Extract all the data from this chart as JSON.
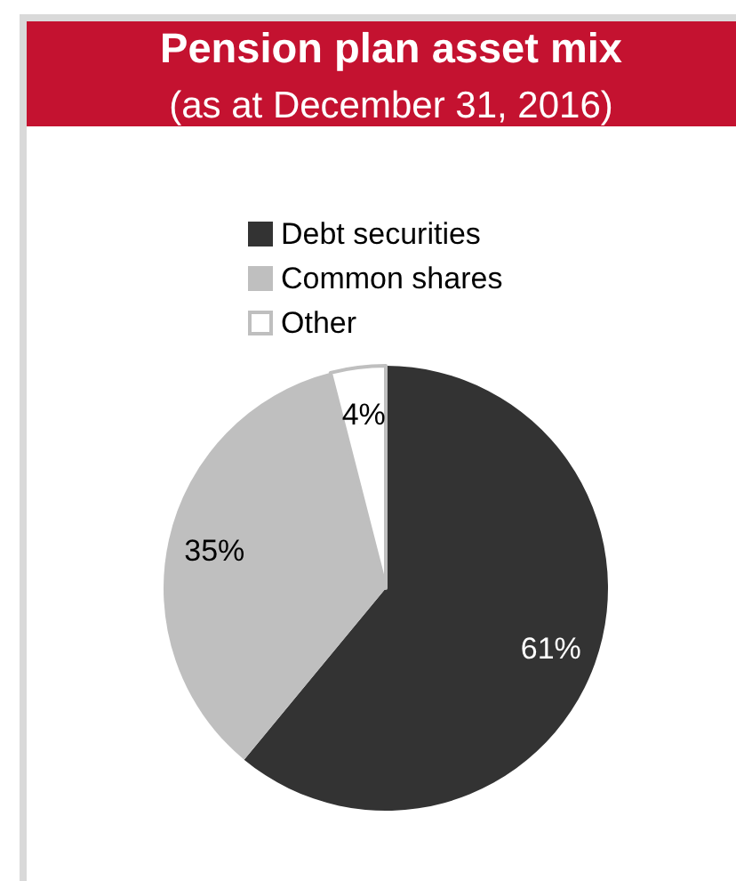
{
  "chart_data": {
    "type": "pie",
    "title": "Pension plan asset mix",
    "subtitle": "(as at December 31, 2016)",
    "categories": [
      "Debt securities",
      "Common shares",
      "Other"
    ],
    "values": [
      61,
      35,
      4
    ],
    "colors": [
      "#333333",
      "#bfbfbf",
      "#ffffff"
    ],
    "value_labels": [
      "61%",
      "35%",
      "4%"
    ],
    "legend": "top"
  }
}
